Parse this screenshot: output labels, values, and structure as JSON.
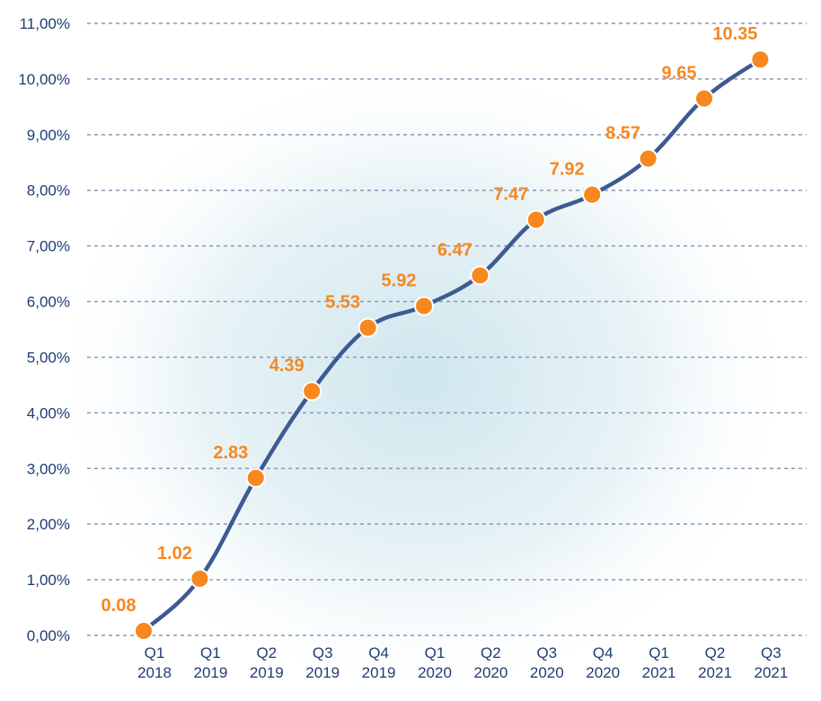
{
  "chart_data": {
    "type": "line",
    "title": "",
    "xlabel": "",
    "ylabel": "",
    "categories": [
      [
        "Q1",
        "2018"
      ],
      [
        "Q1",
        "2019"
      ],
      [
        "Q2",
        "2019"
      ],
      [
        "Q3",
        "2019"
      ],
      [
        "Q4",
        "2019"
      ],
      [
        "Q1",
        "2020"
      ],
      [
        "Q2",
        "2020"
      ],
      [
        "Q3",
        "2020"
      ],
      [
        "Q4",
        "2020"
      ],
      [
        "Q1",
        "2021"
      ],
      [
        "Q2",
        "2021"
      ],
      [
        "Q3",
        "2021"
      ]
    ],
    "series": [
      {
        "values": [
          0.08,
          1.02,
          2.83,
          4.39,
          5.53,
          5.92,
          6.47,
          7.47,
          7.92,
          8.57,
          9.65,
          10.35
        ],
        "labels": [
          "0.08",
          "1.02",
          "2.83",
          "4.39",
          "5.53",
          "5.92",
          "6.47",
          "7.47",
          "7.92",
          "8.57",
          "9.65",
          "10.35"
        ]
      }
    ],
    "ylim": [
      0,
      11
    ],
    "yticks": [
      "0,00%",
      "1,00%",
      "2,00%",
      "3,00%",
      "4,00%",
      "5,00%",
      "6,00%",
      "7,00%",
      "8,00%",
      "9,00%",
      "10,00%",
      "11,00%"
    ],
    "grid": true,
    "legend": "none",
    "colors": {
      "line": "#3e5a93",
      "marker": "#f7871f",
      "data_label": "#f7871f",
      "axis_text": "#1f3d73",
      "grid": "#8a97b8",
      "background_glow": "#cfe6ee"
    }
  }
}
